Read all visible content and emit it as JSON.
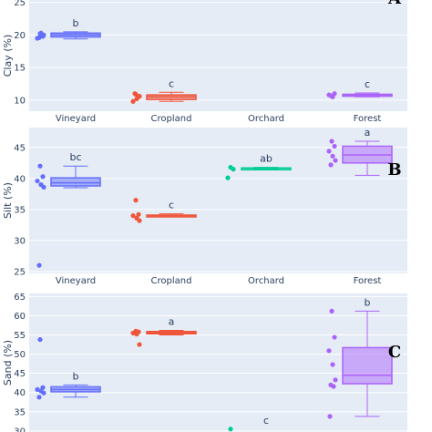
{
  "categories": [
    "Vineyard",
    "Cropland",
    "Orchard",
    "Forest"
  ],
  "colors": {
    "Vineyard": "#636efa",
    "Cropland": "#ef553b",
    "Orchard": "#00cc96",
    "Forest": "#ab63fa",
    "plot_bg": "#e5ecf6",
    "grid": "#ffffff"
  },
  "chart_data": [
    {
      "type": "box",
      "panel": "A",
      "ylabel": "Clay (%)",
      "ylim": [
        8.3,
        26.5
      ],
      "yticks": [
        10,
        15,
        20,
        25
      ],
      "categories": [
        "Vineyard",
        "Cropland",
        "Orchard",
        "Forest"
      ],
      "boxes": [
        {
          "category": "Vineyard",
          "min": 19.4,
          "q1": 19.7,
          "median": 20.0,
          "q3": 20.3,
          "max": 20.5,
          "letter": "b",
          "points": [
            20.2,
            19.8,
            19.5,
            20.3,
            20.0,
            19.6,
            20.1
          ]
        },
        {
          "category": "Cropland",
          "min": 9.8,
          "q1": 10.1,
          "median": 10.5,
          "q3": 10.8,
          "max": 11.2,
          "letter": "c",
          "points": [
            10.9,
            10.5,
            9.8,
            10.2,
            10.6,
            11.0
          ]
        },
        {
          "category": "Orchard",
          "min": null,
          "q1": null,
          "median": null,
          "q3": null,
          "max": null,
          "letter": "",
          "points": []
        },
        {
          "category": "Forest",
          "min": 10.5,
          "q1": 10.6,
          "median": 10.8,
          "q3": 10.9,
          "max": 11.1,
          "letter": "c",
          "points": [
            10.6,
            11.0,
            10.8,
            10.5
          ]
        }
      ]
    },
    {
      "type": "box",
      "panel": "B",
      "ylabel": "Silt (%)",
      "ylim": [
        24.7,
        48.2
      ],
      "yticks": [
        25,
        30,
        35,
        40,
        45
      ],
      "categories": [
        "Vineyard",
        "Cropland",
        "Orchard",
        "Forest"
      ],
      "boxes": [
        {
          "category": "Vineyard",
          "min": 38.5,
          "q1": 38.8,
          "median": 39.3,
          "q3": 40.1,
          "max": 42.0,
          "letter": "bc",
          "points": [
            42.0,
            40.3,
            39.6,
            39.0,
            38.6,
            26.0
          ]
        },
        {
          "category": "Cropland",
          "min": 33.8,
          "q1": 33.9,
          "median": 34.0,
          "q3": 34.1,
          "max": 34.3,
          "letter": "c",
          "points": [
            36.5,
            34.2,
            34.0,
            33.6,
            33.2
          ]
        },
        {
          "category": "Orchard",
          "min": 41.6,
          "q1": 41.6,
          "median": 41.7,
          "q3": 41.7,
          "max": 41.8,
          "letter": "ab",
          "points": [
            41.8,
            41.5,
            40.1
          ]
        },
        {
          "category": "Forest",
          "min": 40.5,
          "q1": 42.5,
          "median": 43.8,
          "q3": 45.2,
          "max": 46.0,
          "letter": "a",
          "points": [
            46.0,
            45.2,
            44.4,
            43.6,
            42.9,
            42.2
          ]
        }
      ]
    },
    {
      "type": "box",
      "panel": "C",
      "ylabel": "Sand (%)",
      "ylim": [
        29.5,
        65.8
      ],
      "yticks": [
        30,
        35,
        40,
        45,
        50,
        55,
        60,
        65
      ],
      "categories": [
        "Vineyard",
        "Cropland",
        "Orchard",
        "Forest"
      ],
      "boxes": [
        {
          "category": "Vineyard",
          "min": 38.8,
          "q1": 40.2,
          "median": 40.8,
          "q3": 41.5,
          "max": 42.0,
          "letter": "b",
          "points": [
            53.8,
            41.3,
            40.8,
            40.4,
            39.9,
            38.8
          ]
        },
        {
          "category": "Cropland",
          "min": 55.0,
          "q1": 55.3,
          "median": 55.6,
          "q3": 55.9,
          "max": 56.2,
          "letter": "a",
          "points": [
            56.0,
            55.8,
            55.5,
            55.2,
            52.5
          ]
        },
        {
          "category": "Orchard",
          "min": null,
          "q1": null,
          "median": null,
          "q3": null,
          "max": null,
          "letter": "c",
          "points": [
            30.5
          ]
        },
        {
          "category": "Forest",
          "min": 33.8,
          "q1": 42.3,
          "median": 44.5,
          "q3": 51.7,
          "max": 61.2,
          "letter": "b",
          "points": [
            61.2,
            54.4,
            50.9,
            47.3,
            43.3,
            42.0,
            41.6,
            33.8
          ]
        }
      ]
    }
  ]
}
